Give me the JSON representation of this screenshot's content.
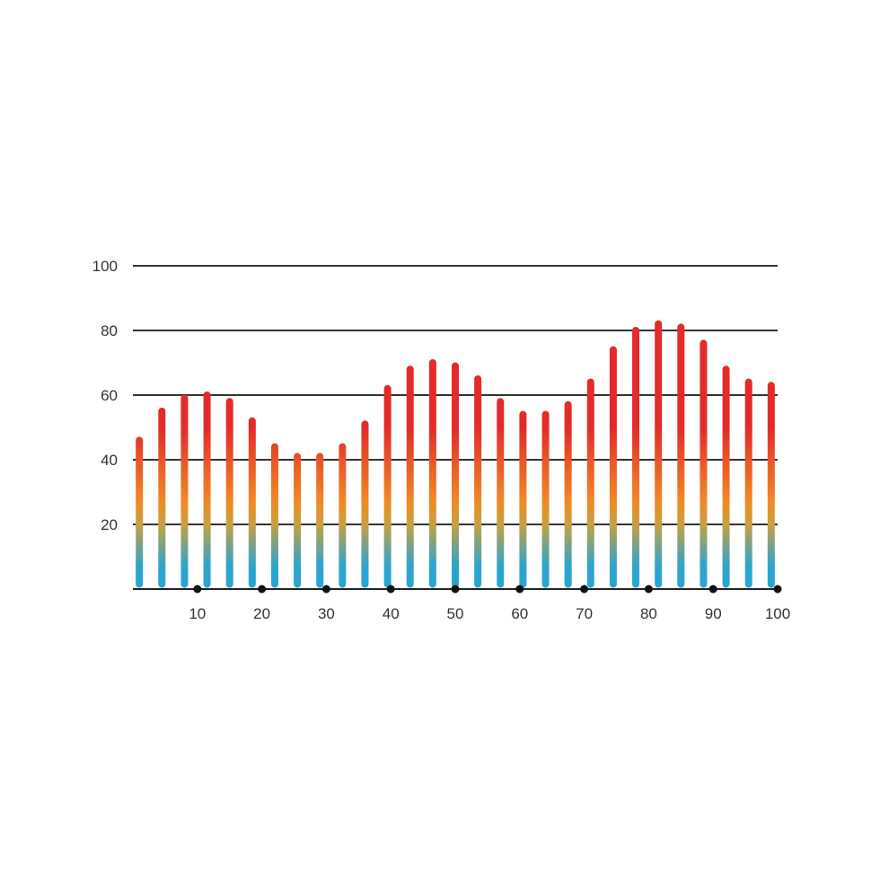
{
  "chart_data": {
    "type": "bar",
    "title": "",
    "xlabel": "",
    "ylabel": "",
    "xlim": [
      0,
      100
    ],
    "ylim": [
      0,
      100
    ],
    "yticks": [
      20,
      40,
      60,
      80,
      100
    ],
    "xticks": [
      10,
      20,
      30,
      40,
      50,
      60,
      70,
      80,
      90,
      100
    ],
    "grid": true,
    "legend": "none",
    "x": [
      1,
      4.5,
      8,
      11.5,
      15,
      18.5,
      22,
      25.5,
      29,
      32.5,
      36,
      39.5,
      43,
      46.5,
      50,
      53.5,
      57,
      60.5,
      64,
      67.5,
      71,
      74.5,
      78,
      81.5,
      85,
      88.5,
      92,
      95.5,
      99
    ],
    "values": [
      46,
      55,
      59,
      60,
      58,
      52,
      44,
      41,
      41,
      44,
      51,
      62,
      68,
      70,
      69,
      65,
      58,
      54,
      54,
      57,
      64,
      74,
      80,
      82,
      81,
      76,
      68,
      64,
      63
    ],
    "colors": {
      "bar_top": "#e42a2a",
      "bar_mid": "#f08a24",
      "bar_bottom": "#2aa5cf",
      "axis": "#222222",
      "grid": "#333333"
    }
  }
}
